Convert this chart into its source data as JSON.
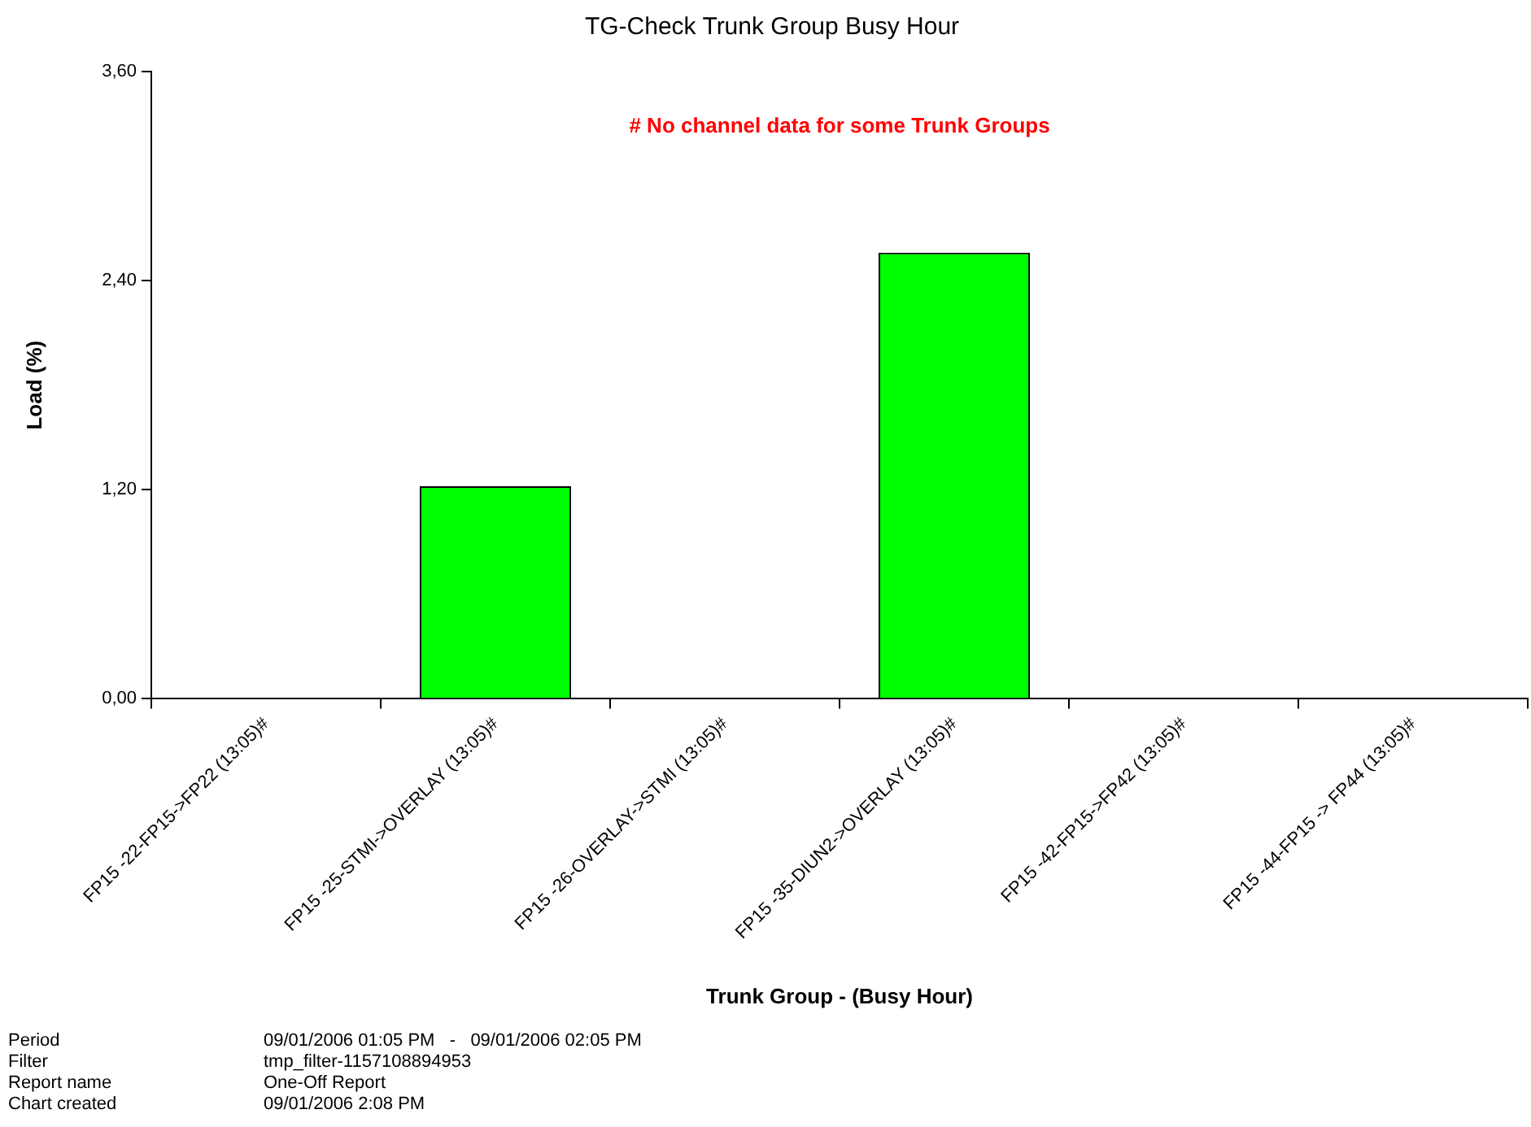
{
  "chart_data": {
    "type": "bar",
    "title": "TG-Check Trunk Group Busy Hour",
    "xlabel": "Trunk Group - (Busy Hour)",
    "ylabel": "Load (%)",
    "categories": [
      "FP15 -22-FP15->FP22 (13:05)#",
      "FP15 -25-STMI->OVERLAY (13:05)#",
      "FP15 -26-OVERLAY->STMI (13:05)#",
      "FP15 -35-DIUN2->OVERLAY (13:05)#",
      "FP15 -42-FP15->FP42 (13:05)#",
      "FP15 -44-FP15 -> FP44 (13:05)#"
    ],
    "values": [
      0,
      1.22,
      0,
      2.56,
      0,
      0
    ],
    "color": "#00ff00",
    "ylim": [
      0,
      3.6
    ],
    "yticks": [
      {
        "value": 0,
        "label": "0,00"
      },
      {
        "value": 1.2,
        "label": "1,20"
      },
      {
        "value": 2.4,
        "label": "2,40"
      },
      {
        "value": 3.6,
        "label": "3,60"
      }
    ],
    "grid": false,
    "legend": false,
    "annotations": [
      "# No channel data for some Trunk Groups",
      "Period",
      "09/01/2006 01:05 PM   -   09/01/2006 02:05 PM",
      "Filter",
      "tmp_filter-1157108894953",
      "Report name",
      "One-Off Report",
      "Chart created",
      "09/01/2006 2:08 PM"
    ]
  }
}
